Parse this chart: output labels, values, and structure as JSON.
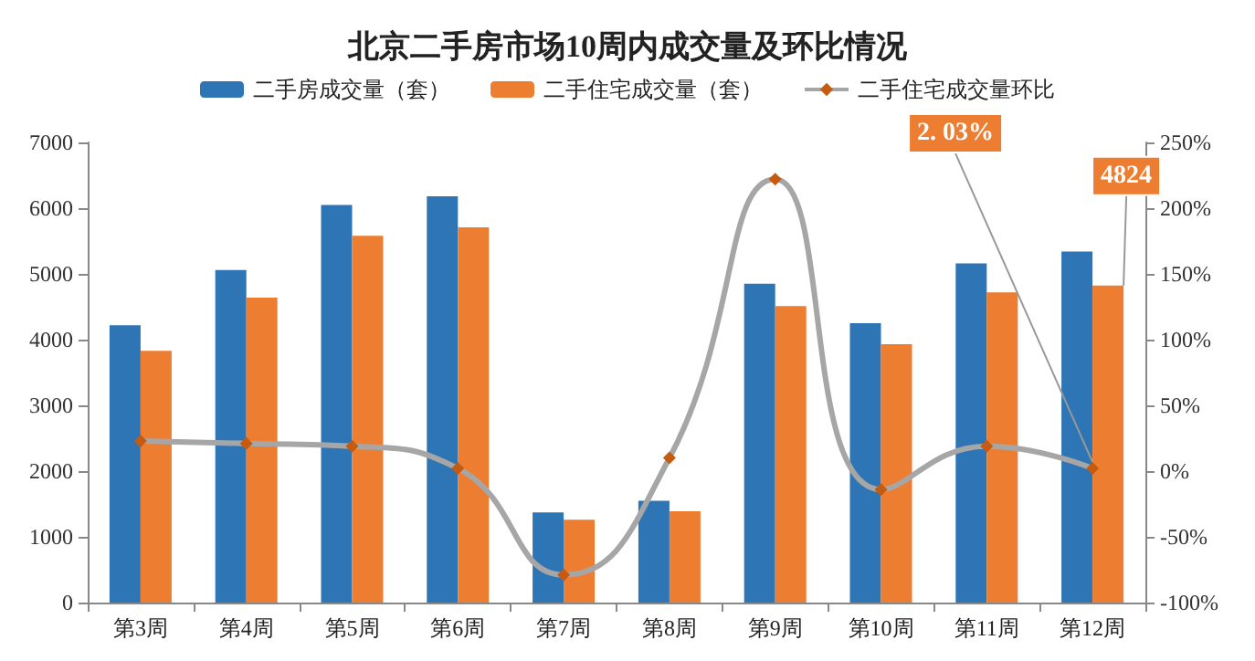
{
  "chart_data": {
    "type": "bar",
    "title": "北京二手房市场10周内成交量及环比情况",
    "categories": [
      "第3周",
      "第4周",
      "第5周",
      "第6周",
      "第7周",
      "第8周",
      "第9周",
      "第10周",
      "第11周",
      "第12周"
    ],
    "series": [
      {
        "name": "二手房成交量（套）",
        "color": "#2e75b6",
        "values": [
          4220,
          5060,
          6050,
          6180,
          1370,
          1550,
          4850,
          4250,
          5160,
          5340
        ]
      },
      {
        "name": "二手住宅成交量（套）",
        "color": "#ed7d31",
        "values": [
          3830,
          4640,
          5580,
          5710,
          1260,
          1390,
          4510,
          3930,
          4720,
          4824
        ],
        "value_labels": [
          null,
          null,
          null,
          null,
          null,
          null,
          null,
          null,
          null,
          "4824"
        ]
      },
      {
        "name": "二手住宅成交量环比",
        "type": "line",
        "axis": "y2",
        "color": "#a6a6a6",
        "marker": "diamond",
        "line_style": "solid",
        "values": [
          23,
          21,
          19,
          2,
          -79,
          10,
          222,
          -14,
          19,
          2.03
        ],
        "value_labels": [
          null,
          null,
          null,
          null,
          null,
          null,
          null,
          null,
          null,
          "2. 03%"
        ]
      }
    ],
    "ylim": [
      0,
      7000
    ],
    "yticks": [
      0,
      1000,
      2000,
      3000,
      4000,
      5000,
      6000,
      7000
    ],
    "y2lim": [
      -100,
      250
    ],
    "y2ticks": [
      {
        "value": -100,
        "label": "-100%"
      },
      {
        "value": -50,
        "label": "-50%"
      },
      {
        "value": 0,
        "label": "0%"
      },
      {
        "value": 50,
        "label": "50%"
      },
      {
        "value": 100,
        "label": "100%"
      },
      {
        "value": 150,
        "label": "150%"
      },
      {
        "value": 200,
        "label": "200%"
      },
      {
        "value": 250,
        "label": "250%"
      }
    ],
    "legend": "top",
    "grid": false
  }
}
